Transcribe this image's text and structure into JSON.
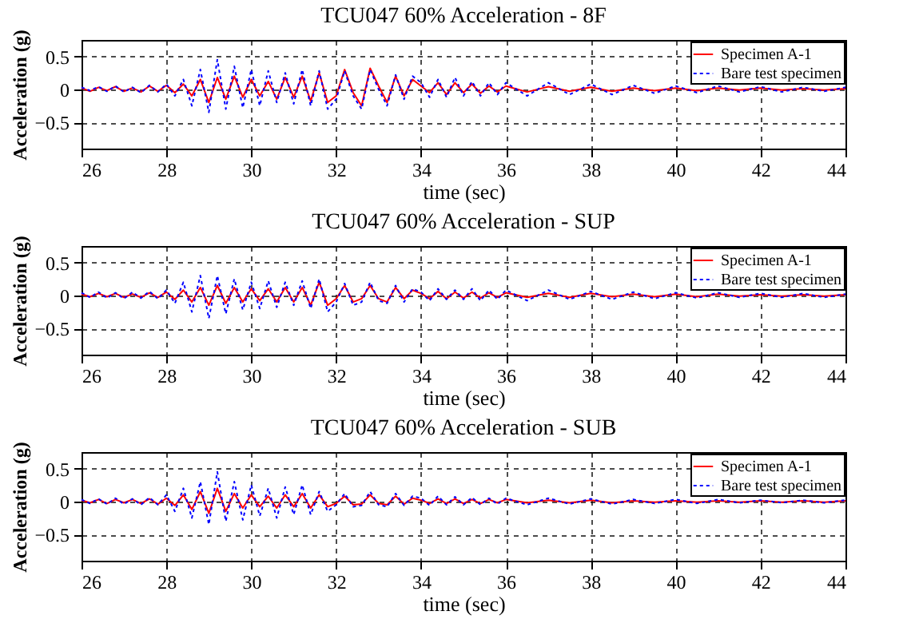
{
  "chart_data": [
    {
      "type": "line",
      "title": "TCU047 60% Acceleration - 8F",
      "xlabel": "time (sec)",
      "ylabel": "Acceleration (g)",
      "x": [
        26.0,
        26.2,
        26.4,
        26.6,
        26.8,
        27.0,
        27.2,
        27.4,
        27.6,
        27.8,
        28.0,
        28.2,
        28.4,
        28.6,
        28.8,
        29.0,
        29.2,
        29.4,
        29.6,
        29.8,
        30.0,
        30.2,
        30.4,
        30.6,
        30.8,
        31.0,
        31.2,
        31.4,
        31.6,
        31.8,
        32.0,
        32.2,
        32.4,
        32.6,
        32.8,
        33.0,
        33.2,
        33.4,
        33.6,
        33.8,
        34.0,
        34.2,
        34.4,
        34.6,
        34.8,
        35.0,
        35.2,
        35.4,
        35.6,
        35.8,
        36.0,
        36.5,
        37.0,
        37.5,
        38.0,
        38.5,
        39.0,
        39.5,
        40.0,
        40.5,
        41.0,
        41.5,
        42.0,
        42.5,
        43.0,
        43.5,
        44.0
      ],
      "series": [
        {
          "name": "Specimen A-1",
          "color": "#ff0000",
          "line_style": "solid",
          "values": [
            0.02,
            -0.03,
            0.03,
            -0.02,
            0.04,
            -0.03,
            0.02,
            -0.04,
            0.05,
            -0.03,
            0.06,
            -0.05,
            0.08,
            -0.1,
            0.15,
            -0.2,
            0.18,
            -0.15,
            0.2,
            -0.12,
            0.15,
            -0.1,
            0.12,
            -0.15,
            0.18,
            -0.12,
            0.2,
            -0.18,
            0.25,
            -0.2,
            -0.1,
            0.3,
            -0.05,
            -0.25,
            0.32,
            0.05,
            -0.2,
            0.2,
            -0.1,
            0.15,
            0.05,
            -0.05,
            0.1,
            -0.08,
            0.1,
            -0.05,
            0.08,
            -0.06,
            0.05,
            -0.04,
            0.05,
            -0.04,
            0.04,
            -0.03,
            0.03,
            -0.03,
            0.02,
            -0.02,
            0.02,
            -0.02,
            0.02,
            -0.01,
            0.02,
            -0.01,
            0.01,
            -0.01,
            0.01
          ]
        },
        {
          "name": "Bare test specimen",
          "color": "#0000ff",
          "line_style": "dotted",
          "values": [
            0.03,
            -0.02,
            0.04,
            -0.03,
            0.05,
            -0.04,
            0.03,
            -0.05,
            0.06,
            -0.04,
            0.08,
            -0.1,
            0.15,
            -0.25,
            0.3,
            -0.35,
            0.45,
            -0.3,
            0.35,
            -0.28,
            0.3,
            -0.25,
            0.28,
            -0.2,
            0.25,
            -0.22,
            0.3,
            -0.25,
            0.28,
            -0.3,
            -0.15,
            0.28,
            -0.1,
            -0.3,
            0.3,
            0.0,
            -0.25,
            0.22,
            -0.15,
            0.2,
            0.1,
            -0.12,
            0.15,
            -0.12,
            0.18,
            -0.1,
            0.12,
            -0.1,
            0.1,
            -0.08,
            0.1,
            -0.1,
            0.1,
            -0.08,
            0.08,
            -0.08,
            0.06,
            -0.06,
            0.05,
            -0.05,
            0.05,
            -0.04,
            0.04,
            -0.04,
            0.03,
            -0.03,
            0.03
          ]
        }
      ],
      "xlim": [
        26,
        44
      ],
      "ylim": [
        -0.9,
        0.75
      ],
      "xticks": [
        26,
        28,
        30,
        32,
        34,
        36,
        38,
        40,
        42,
        44
      ],
      "yticks": [
        -0.5,
        0,
        0.5
      ],
      "grid": true,
      "legend": "top right"
    },
    {
      "type": "line",
      "title": "TCU047 60% Acceleration - SUP",
      "xlabel": "time (sec)",
      "ylabel": "Acceleration (g)",
      "x": [
        26.0,
        26.2,
        26.4,
        26.6,
        26.8,
        27.0,
        27.2,
        27.4,
        27.6,
        27.8,
        28.0,
        28.2,
        28.4,
        28.6,
        28.8,
        29.0,
        29.2,
        29.4,
        29.6,
        29.8,
        30.0,
        30.2,
        30.4,
        30.6,
        30.8,
        31.0,
        31.2,
        31.4,
        31.6,
        31.8,
        32.0,
        32.2,
        32.4,
        32.6,
        32.8,
        33.0,
        33.2,
        33.4,
        33.6,
        33.8,
        34.0,
        34.2,
        34.4,
        34.6,
        34.8,
        35.0,
        35.2,
        35.4,
        35.6,
        35.8,
        36.0,
        36.5,
        37.0,
        37.5,
        38.0,
        38.5,
        39.0,
        39.5,
        40.0,
        40.5,
        41.0,
        41.5,
        42.0,
        42.5,
        43.0,
        43.5,
        44.0
      ],
      "series": [
        {
          "name": "Specimen A-1",
          "color": "#ff0000",
          "line_style": "solid",
          "values": [
            0.02,
            -0.02,
            0.03,
            -0.02,
            0.03,
            -0.03,
            0.02,
            -0.03,
            0.04,
            -0.03,
            0.05,
            -0.06,
            0.08,
            -0.1,
            0.12,
            -0.15,
            0.15,
            -0.12,
            0.12,
            -0.1,
            0.1,
            -0.08,
            0.1,
            -0.1,
            0.12,
            -0.1,
            0.12,
            -0.15,
            0.2,
            -0.15,
            -0.05,
            0.15,
            -0.1,
            -0.05,
            0.15,
            -0.05,
            -0.1,
            0.12,
            -0.05,
            0.08,
            0.03,
            -0.05,
            0.06,
            -0.05,
            0.05,
            -0.04,
            0.05,
            -0.04,
            0.04,
            -0.03,
            0.04,
            -0.03,
            0.03,
            -0.03,
            0.03,
            -0.02,
            0.02,
            -0.02,
            0.02,
            -0.02,
            0.02,
            -0.01,
            0.01,
            -0.01,
            0.01,
            -0.01,
            0.01
          ]
        },
        {
          "name": "Bare test specimen",
          "color": "#0000ff",
          "line_style": "dotted",
          "values": [
            0.04,
            -0.03,
            0.05,
            -0.04,
            0.04,
            -0.05,
            0.05,
            -0.04,
            0.06,
            -0.05,
            0.08,
            -0.12,
            0.2,
            -0.25,
            0.3,
            -0.35,
            0.3,
            -0.28,
            0.25,
            -0.22,
            0.2,
            -0.2,
            0.22,
            -0.18,
            0.2,
            -0.15,
            0.22,
            -0.2,
            0.25,
            -0.25,
            -0.1,
            0.18,
            -0.15,
            -0.1,
            0.2,
            -0.08,
            -0.12,
            0.15,
            -0.1,
            0.1,
            0.05,
            -0.08,
            0.1,
            -0.06,
            0.08,
            -0.06,
            0.1,
            -0.08,
            0.08,
            -0.06,
            0.08,
            -0.08,
            0.08,
            -0.06,
            0.06,
            -0.06,
            0.05,
            -0.05,
            0.04,
            -0.04,
            0.04,
            -0.03,
            0.03,
            -0.03,
            0.03,
            -0.03,
            0.02
          ]
        }
      ],
      "xlim": [
        26,
        44
      ],
      "ylim": [
        -0.9,
        0.75
      ],
      "xticks": [
        26,
        28,
        30,
        32,
        34,
        36,
        38,
        40,
        42,
        44
      ],
      "yticks": [
        -0.5,
        0,
        0.5
      ],
      "grid": true,
      "legend": "top right"
    },
    {
      "type": "line",
      "title": "TCU047 60% Acceleration - SUB",
      "xlabel": "time (sec)",
      "ylabel": "Acceleration (g)",
      "x": [
        26.0,
        26.2,
        26.4,
        26.6,
        26.8,
        27.0,
        27.2,
        27.4,
        27.6,
        27.8,
        28.0,
        28.2,
        28.4,
        28.6,
        28.8,
        29.0,
        29.2,
        29.4,
        29.6,
        29.8,
        30.0,
        30.2,
        30.4,
        30.6,
        30.8,
        31.0,
        31.2,
        31.4,
        31.6,
        31.8,
        32.0,
        32.2,
        32.4,
        32.6,
        32.8,
        33.0,
        33.2,
        33.4,
        33.6,
        33.8,
        34.0,
        34.2,
        34.4,
        34.6,
        34.8,
        35.0,
        35.2,
        35.4,
        35.6,
        35.8,
        36.0,
        36.5,
        37.0,
        37.5,
        38.0,
        38.5,
        39.0,
        39.5,
        40.0,
        40.5,
        41.0,
        41.5,
        42.0,
        42.5,
        43.0,
        43.5,
        44.0
      ],
      "series": [
        {
          "name": "Specimen A-1",
          "color": "#ff0000",
          "line_style": "solid",
          "values": [
            0.02,
            -0.02,
            0.03,
            -0.03,
            0.03,
            -0.02,
            0.03,
            -0.03,
            0.04,
            -0.04,
            0.05,
            -0.06,
            0.1,
            -0.12,
            0.15,
            -0.18,
            0.2,
            -0.15,
            0.12,
            -0.1,
            0.1,
            -0.08,
            0.08,
            -0.1,
            0.1,
            -0.08,
            0.12,
            -0.1,
            0.1,
            -0.08,
            -0.03,
            0.08,
            -0.05,
            -0.04,
            0.1,
            -0.03,
            -0.05,
            0.08,
            -0.04,
            0.05,
            0.02,
            -0.03,
            0.04,
            -0.03,
            0.04,
            -0.03,
            0.03,
            -0.03,
            0.03,
            -0.02,
            0.03,
            -0.02,
            0.02,
            -0.02,
            0.02,
            -0.02,
            0.01,
            -0.01,
            0.01,
            -0.01,
            0.01,
            -0.01,
            0.01,
            -0.01,
            0.01,
            -0.01,
            0.01
          ]
        },
        {
          "name": "Bare test specimen",
          "color": "#0000ff",
          "line_style": "dotted",
          "values": [
            0.03,
            -0.03,
            0.04,
            -0.04,
            0.05,
            -0.04,
            0.04,
            -0.05,
            0.06,
            -0.05,
            0.1,
            -0.15,
            0.2,
            -0.25,
            0.3,
            -0.35,
            0.45,
            -0.3,
            0.3,
            -0.28,
            0.25,
            -0.22,
            0.2,
            -0.25,
            0.22,
            -0.2,
            0.25,
            -0.2,
            0.15,
            -0.15,
            -0.05,
            0.12,
            -0.08,
            -0.06,
            0.15,
            -0.05,
            -0.08,
            0.12,
            -0.06,
            0.08,
            0.05,
            -0.06,
            0.08,
            -0.05,
            0.07,
            -0.05,
            0.06,
            -0.05,
            0.05,
            -0.04,
            0.05,
            -0.05,
            0.05,
            -0.04,
            0.04,
            -0.04,
            0.03,
            -0.03,
            0.03,
            -0.03,
            0.03,
            -0.02,
            0.02,
            -0.02,
            0.02,
            -0.02,
            0.02
          ]
        }
      ],
      "xlim": [
        26,
        44
      ],
      "ylim": [
        -0.9,
        0.75
      ],
      "xticks": [
        26,
        28,
        30,
        32,
        34,
        36,
        38,
        40,
        42,
        44
      ],
      "yticks": [
        -0.5,
        0,
        0.5
      ],
      "grid": true,
      "legend": "top right"
    }
  ]
}
